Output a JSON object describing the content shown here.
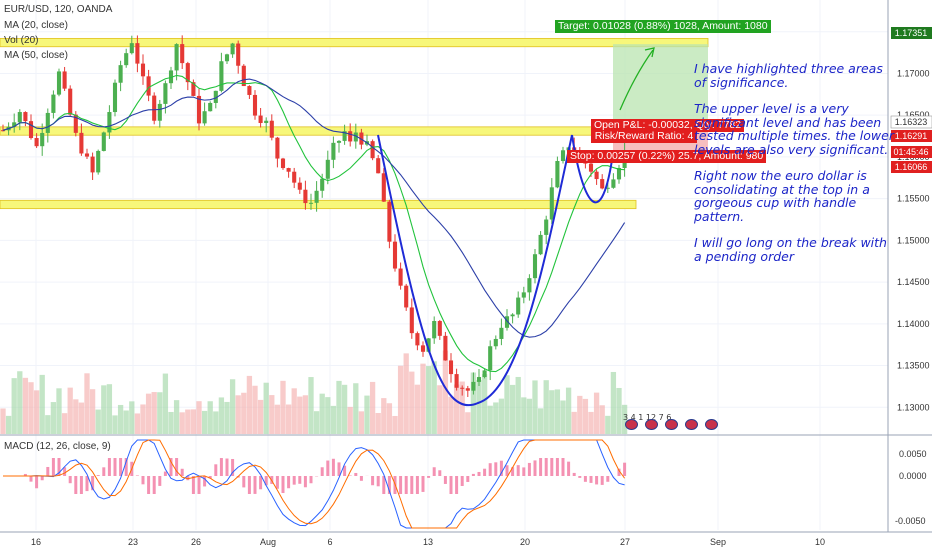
{
  "header": {
    "symbol": "EUR/USD, 120, OANDA",
    "ma20": "MA (20, close)",
    "vol": "Vol (20)",
    "ma50": "MA (50, close)",
    "macd": "MACD (12, 26, close, 9)"
  },
  "price_axis": {
    "ticks": [
      "1.17500",
      "1.17000",
      "1.16500",
      "1.16000",
      "1.15500",
      "1.15000",
      "1.14500",
      "1.14000",
      "1.13500",
      "1.13000"
    ],
    "labels": [
      {
        "text": "1.17351",
        "bg": "#1f7a1f",
        "fg": "#ffffff"
      },
      {
        "text": "1.16323",
        "bg": "#ffffff",
        "fg": "#333333"
      },
      {
        "text": "1.16291",
        "bg": "#e02020",
        "fg": "#ffffff"
      },
      {
        "text": "01:45:46",
        "bg": "#e02020",
        "fg": "#ffffff"
      },
      {
        "text": "1.16066",
        "bg": "#e02020",
        "fg": "#ffffff"
      }
    ]
  },
  "macd_axis": {
    "ticks": [
      "0.0050",
      "0.0000",
      "-0.0050"
    ]
  },
  "time_axis": {
    "ticks": [
      "16",
      "23",
      "26",
      "Aug",
      "6",
      "13",
      "20",
      "27",
      "Sep",
      "10"
    ]
  },
  "trade": {
    "target": "Target: 0.01028 (0.88%) 1028, Amount: 1080",
    "open_pl": "Open P&L: -0.00032, Qty: 7782",
    "rr": "Risk/Reward Ratio: 4",
    "stop": "Stop: 0.00257 (0.22%) 25.7, Amount: 980"
  },
  "annotation": {
    "p1": "I have highlighted three areas of significance.",
    "p2": "The upper level is a very significant level and has been tested multiple times. the lower levels are also very significant.",
    "p3": "Right now the euro dollar is consolidating at the top in a gorgeous cup with handle pattern.",
    "p4": "I will go long on the break with a pending order"
  },
  "events": {
    "label": "3 4 1 12 7 6"
  },
  "colors": {
    "up": "#4caf50",
    "down": "#e53935",
    "ma20": "#22c33c",
    "ma50": "#2c3fa8",
    "zone": "#f7f77a",
    "cup": "#1f2bd6",
    "macd": "#2962ff",
    "signal": "#ff6d00"
  },
  "chart_data": {
    "type": "candlestick",
    "symbol": "EUR/USD",
    "timeframe": "120",
    "yrange": [
      1.1268,
      1.1788
    ],
    "zones": [
      [
        1.1732,
        1.1742
      ],
      [
        1.1626,
        1.1636
      ],
      [
        1.1538,
        1.1548
      ]
    ],
    "close_path": [
      [
        0,
        1.1632
      ],
      [
        3,
        1.1655
      ],
      [
        6,
        1.1612
      ],
      [
        8,
        1.1658
      ],
      [
        10,
        1.17
      ],
      [
        13,
        1.1625
      ],
      [
        16,
        1.158
      ],
      [
        19,
        1.1655
      ],
      [
        21,
        1.171
      ],
      [
        23,
        1.174
      ],
      [
        25,
        1.169
      ],
      [
        27,
        1.165
      ],
      [
        29,
        1.1685
      ],
      [
        31,
        1.1736
      ],
      [
        33,
        1.169
      ],
      [
        35,
        1.1645
      ],
      [
        37,
        1.166
      ],
      [
        39,
        1.171
      ],
      [
        41,
        1.1736
      ],
      [
        43,
        1.169
      ],
      [
        45,
        1.1655
      ],
      [
        47,
        1.164
      ],
      [
        49,
        1.16
      ],
      [
        51,
        1.1585
      ],
      [
        53,
        1.1555
      ],
      [
        55,
        1.1545
      ],
      [
        57,
        1.1575
      ],
      [
        59,
        1.161
      ],
      [
        61,
        1.163
      ],
      [
        62,
        1.1615
      ],
      [
        63,
        1.163
      ],
      [
        65,
        1.1612
      ],
      [
        67,
        1.158
      ],
      [
        69,
        1.15
      ],
      [
        71,
        1.144
      ],
      [
        73,
        1.139
      ],
      [
        75,
        1.137
      ],
      [
        77,
        1.14
      ],
      [
        79,
        1.136
      ],
      [
        81,
        1.133
      ],
      [
        83,
        1.132
      ],
      [
        85,
        1.133
      ],
      [
        87,
        1.137
      ],
      [
        89,
        1.14
      ],
      [
        91,
        1.141
      ],
      [
        93,
        1.144
      ],
      [
        95,
        1.148
      ],
      [
        97,
        1.153
      ],
      [
        99,
        1.159
      ],
      [
        101,
        1.1615
      ],
      [
        103,
        1.16
      ],
      [
        105,
        1.1585
      ],
      [
        107,
        1.156
      ],
      [
        109,
        1.158
      ],
      [
        111,
        1.1605
      ]
    ],
    "target_price": 1.17351,
    "entry_price": 1.16323,
    "stop_price": 1.16066
  }
}
